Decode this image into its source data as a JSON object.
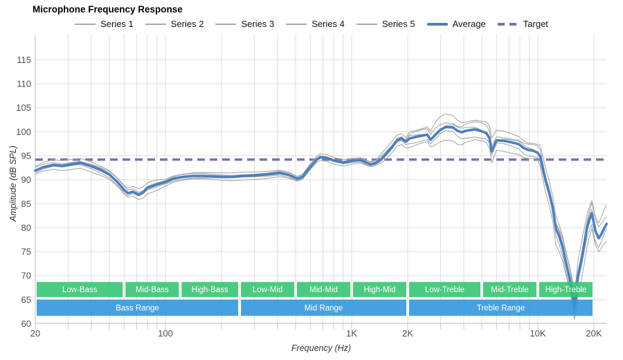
{
  "title": "Microphone Frequency Response",
  "legend": {
    "items": [
      {
        "label": "Series 1",
        "swatch": "thin"
      },
      {
        "label": "Series 2",
        "swatch": "thin"
      },
      {
        "label": "Series 3",
        "swatch": "thin"
      },
      {
        "label": "Series 4",
        "swatch": "thin"
      },
      {
        "label": "Series 5",
        "swatch": "thin"
      },
      {
        "label": "Average",
        "swatch": "thick"
      },
      {
        "label": "Target",
        "swatch": "dash"
      }
    ]
  },
  "colors": {
    "average": "#4c7fbe",
    "target": "#7a70ab",
    "series": "#a8a8a8",
    "band_green": "#31c46f",
    "band_blue": "#2e94dc",
    "grid": "#dcdcdc",
    "axis": "#c6c6c6",
    "text": "#4d4d4d",
    "band_text": "#ffffff"
  },
  "chart_data": {
    "type": "line",
    "title": "Microphone Frequency Response",
    "xlabel": "Frequency (Hz)",
    "ylabel": "Amplitude (dB SPL)",
    "x_scale": "log",
    "x_range": [
      20,
      23400
    ],
    "y_range": [
      60,
      117.5
    ],
    "grid": true,
    "legend_position": "top-center",
    "x_tick_labels": [
      {
        "f": 20,
        "label": "20"
      },
      {
        "f": 100,
        "label": "100"
      },
      {
        "f": 1000,
        "label": "1K"
      },
      {
        "f": 2000,
        "label": "2K"
      },
      {
        "f": 10000,
        "label": "10K"
      },
      {
        "f": 20000,
        "label": "20K"
      }
    ],
    "x_gridline_freqs": [
      20,
      30,
      40,
      50,
      60,
      70,
      80,
      90,
      100,
      200,
      300,
      400,
      500,
      600,
      700,
      800,
      900,
      1000,
      2000,
      3000,
      4000,
      5000,
      6000,
      7000,
      8000,
      9000,
      10000,
      20000
    ],
    "y_ticks": [
      60,
      65,
      70,
      75,
      80,
      85,
      90,
      95,
      100,
      105,
      110,
      115
    ],
    "target": {
      "label": "Target",
      "value_db": 94.2
    },
    "frequencies": [
      20,
      22,
      25,
      28,
      32,
      35,
      40,
      45,
      50,
      55,
      60,
      63,
      67,
      72,
      76,
      80,
      90,
      100,
      110,
      120,
      140,
      160,
      180,
      200,
      230,
      260,
      300,
      350,
      410,
      460,
      510,
      545,
      595,
      650,
      680,
      740,
      800,
      900,
      1030,
      1120,
      1210,
      1270,
      1360,
      1450,
      1550,
      1650,
      1750,
      1850,
      1950,
      2050,
      2200,
      2400,
      2550,
      2650,
      2850,
      3000,
      3200,
      3500,
      3700,
      3900,
      4100,
      4600,
      5000,
      5300,
      5500,
      5650,
      6000,
      6600,
      7200,
      7900,
      8400,
      8900,
      9500,
      10000,
      10300,
      10600,
      11000,
      11500,
      12000,
      12500,
      13000,
      13600,
      14100,
      14800,
      15400,
      15700,
      16000,
      16400,
      17100,
      17700,
      18300,
      18900,
      19500,
      20400,
      21200,
      21900,
      22700,
      23400
    ],
    "average": {
      "label": "Average",
      "values_db": [
        91.9,
        92.6,
        93.1,
        92.9,
        93.3,
        93.5,
        92.8,
        92.0,
        91.1,
        89.6,
        87.9,
        87.2,
        87.5,
        86.9,
        87.4,
        88.3,
        89.0,
        89.5,
        90.2,
        90.5,
        90.8,
        90.8,
        90.7,
        90.6,
        90.6,
        90.8,
        90.9,
        91.1,
        91.4,
        91.0,
        90.2,
        90.6,
        92.5,
        94.2,
        94.7,
        94.5,
        94.0,
        93.6,
        94.0,
        94.1,
        93.5,
        93.2,
        93.6,
        94.4,
        95.6,
        96.8,
        98.2,
        98.6,
        97.9,
        98.6,
        98.9,
        99.2,
        99.4,
        98.3,
        99.6,
        100.4,
        101.0,
        100.9,
        100.2,
        99.9,
        100.2,
        100.5,
        100.1,
        99.7,
        98.6,
        95.9,
        98.2,
        98.1,
        97.8,
        97.4,
        96.6,
        96.2,
        96.0,
        95.6,
        94.8,
        92.5,
        89.8,
        87.3,
        84.3,
        79.8,
        78.3,
        75.9,
        73.0,
        69.5,
        65.8,
        63.5,
        65.3,
        69.7,
        73.0,
        76.3,
        79.7,
        81.6,
        83.0,
        79.3,
        77.8,
        78.6,
        79.9,
        80.8
      ]
    },
    "series": {
      "labels": [
        "Series 1",
        "Series 2",
        "Series 3",
        "Series 4",
        "Series 5"
      ],
      "offset_coefs": [
        1.0,
        0.55,
        0.15,
        -0.5,
        -1.05
      ],
      "spread_db": [
        0.9,
        0.9,
        0.9,
        0.9,
        0.9,
        0.9,
        1.0,
        1.0,
        1.0,
        1.0,
        1.0,
        1.0,
        1.0,
        1.0,
        1.0,
        1.0,
        1.0,
        0.7,
        0.7,
        0.7,
        0.7,
        0.7,
        0.7,
        0.7,
        0.7,
        0.7,
        0.7,
        0.7,
        0.7,
        0.7,
        0.6,
        0.6,
        0.6,
        0.6,
        0.6,
        0.6,
        0.6,
        0.6,
        0.6,
        0.6,
        0.6,
        0.6,
        0.6,
        1.0,
        1.0,
        1.0,
        1.0,
        1.0,
        1.0,
        1.7,
        1.7,
        1.7,
        1.7,
        1.7,
        2.3,
        2.3,
        2.3,
        2.3,
        2.3,
        2.3,
        2.3,
        2.3,
        2.3,
        2.3,
        2.3,
        2.3,
        1.8,
        1.8,
        1.8,
        1.8,
        1.8,
        1.8,
        1.8,
        1.8,
        2.2,
        2.2,
        2.2,
        2.2,
        2.2,
        2.8,
        2.8,
        2.8,
        2.8,
        2.8,
        2.8,
        2.8,
        2.8,
        2.8,
        3.3,
        3.3,
        3.3,
        3.3,
        3.3,
        3.3,
        3.3,
        3.3,
        3.3,
        3.3
      ]
    },
    "bands": {
      "sub": [
        {
          "label": "Low-Bass",
          "from": 20,
          "to": 60
        },
        {
          "label": "Mid-Bass",
          "from": 60,
          "to": 120
        },
        {
          "label": "High-Bass",
          "from": 120,
          "to": 250
        },
        {
          "label": "Low-Mid",
          "from": 250,
          "to": 500
        },
        {
          "label": "Mid-Mid",
          "from": 500,
          "to": 1000
        },
        {
          "label": "High-Mid",
          "from": 1000,
          "to": 2000
        },
        {
          "label": "Low-Treble",
          "from": 2000,
          "to": 5000
        },
        {
          "label": "Mid-Treble",
          "from": 5000,
          "to": 10000
        },
        {
          "label": "High-Treble",
          "from": 10000,
          "to": 20000
        }
      ],
      "main": [
        {
          "label": "Bass Range",
          "from": 20,
          "to": 250
        },
        {
          "label": "Mid Range",
          "from": 250,
          "to": 2000
        },
        {
          "label": "Treble Range",
          "from": 2000,
          "to": 20000
        }
      ]
    }
  },
  "x_axis_title": "Frequency (Hz)",
  "y_axis_title": "Amplitude (dB SPL)"
}
